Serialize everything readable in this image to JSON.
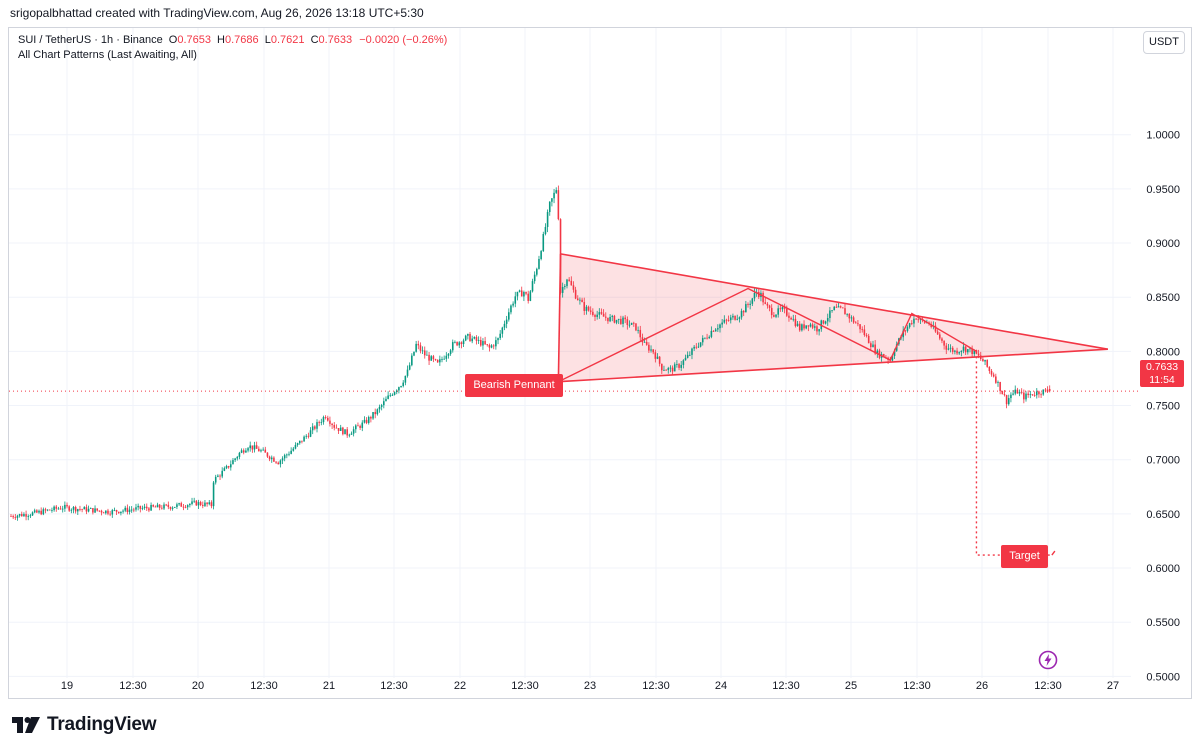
{
  "header": {
    "credit": "srigopalbhattad created with TradingView.com, Aug 26, 2026 13:18 UTC+5:30"
  },
  "legend": {
    "symbol": "SUI / TetherUS · 1h · Binance",
    "o_label": "O",
    "o_value": "0.7653",
    "h_label": "H",
    "h_value": "0.7686",
    "l_label": "L",
    "l_value": "0.7621",
    "c_label": "C",
    "c_value": "0.7633",
    "change": "−0.0020 (−0.26%)",
    "indicator": "All Chart Patterns (Last Awaiting, All)"
  },
  "currency_button": "USDT",
  "price_tag": {
    "price": "0.7633",
    "countdown": "11:54"
  },
  "brand": {
    "name": "TradingView"
  },
  "colors": {
    "up": "#089981",
    "down": "#f23645",
    "grid": "#f0f3fa",
    "pattern_fill": "#f23645"
  },
  "chart_data": {
    "type": "candlestick",
    "timeframe": "1h",
    "title": "SUI / TetherUS · 1h · Binance",
    "x_ticks": [
      "19",
      "12:30",
      "20",
      "12:30",
      "21",
      "12:30",
      "22",
      "12:30",
      "23",
      "12:30",
      "24",
      "12:30",
      "25",
      "12:30",
      "26",
      "12:30",
      "27"
    ],
    "y_ticks": [
      "1.0000",
      "0.9500",
      "0.9000",
      "0.8500",
      "0.8000",
      "0.7500",
      "0.7000",
      "0.6500",
      "0.6000",
      "0.5500",
      "0.5000"
    ],
    "ylim": [
      0.4985,
      1.0505
    ],
    "last_price": 0.7633,
    "grid": true,
    "close_path": [
      [
        0,
        0.648
      ],
      [
        12,
        0.651
      ],
      [
        24,
        0.656
      ],
      [
        35,
        0.654
      ],
      [
        46,
        0.652
      ],
      [
        60,
        0.655
      ],
      [
        75,
        0.657
      ],
      [
        86,
        0.66
      ],
      [
        93,
        0.658
      ],
      [
        94,
        0.681
      ],
      [
        100,
        0.692
      ],
      [
        106,
        0.706
      ],
      [
        110,
        0.713
      ],
      [
        116,
        0.708
      ],
      [
        124,
        0.698
      ],
      [
        132,
        0.712
      ],
      [
        140,
        0.728
      ],
      [
        146,
        0.741
      ],
      [
        150,
        0.731
      ],
      [
        156,
        0.724
      ],
      [
        164,
        0.734
      ],
      [
        170,
        0.745
      ],
      [
        176,
        0.76
      ],
      [
        181,
        0.77
      ],
      [
        184,
        0.781
      ],
      [
        188,
        0.806
      ],
      [
        192,
        0.797
      ],
      [
        198,
        0.788
      ],
      [
        205,
        0.806
      ],
      [
        212,
        0.813
      ],
      [
        218,
        0.808
      ],
      [
        222,
        0.803
      ],
      [
        226,
        0.811
      ],
      [
        230,
        0.832
      ],
      [
        234,
        0.851
      ],
      [
        238,
        0.855
      ],
      [
        240,
        0.848
      ],
      [
        244,
        0.878
      ],
      [
        247,
        0.905
      ],
      [
        250,
        0.935
      ],
      [
        253,
        0.95
      ],
      [
        254,
        0.925
      ],
      [
        255,
        0.855
      ],
      [
        258,
        0.868
      ],
      [
        262,
        0.852
      ],
      [
        266,
        0.84
      ],
      [
        272,
        0.834
      ],
      [
        278,
        0.83
      ],
      [
        284,
        0.828
      ],
      [
        290,
        0.822
      ],
      [
        294,
        0.806
      ],
      [
        298,
        0.8
      ],
      [
        302,
        0.785
      ],
      [
        306,
        0.783
      ],
      [
        310,
        0.787
      ],
      [
        314,
        0.795
      ],
      [
        318,
        0.805
      ],
      [
        322,
        0.812
      ],
      [
        326,
        0.821
      ],
      [
        330,
        0.826
      ],
      [
        334,
        0.83
      ],
      [
        338,
        0.834
      ],
      [
        342,
        0.843
      ],
      [
        346,
        0.855
      ],
      [
        348,
        0.852
      ],
      [
        350,
        0.842
      ],
      [
        354,
        0.835
      ],
      [
        358,
        0.838
      ],
      [
        362,
        0.832
      ],
      [
        366,
        0.821
      ],
      [
        370,
        0.826
      ],
      [
        374,
        0.821
      ],
      [
        378,
        0.83
      ],
      [
        382,
        0.839
      ],
      [
        386,
        0.838
      ],
      [
        390,
        0.83
      ],
      [
        394,
        0.822
      ],
      [
        398,
        0.81
      ],
      [
        402,
        0.798
      ],
      [
        406,
        0.795
      ],
      [
        408,
        0.792
      ],
      [
        410,
        0.803
      ],
      [
        414,
        0.817
      ],
      [
        418,
        0.828
      ],
      [
        420,
        0.832
      ],
      [
        422,
        0.828
      ],
      [
        426,
        0.826
      ],
      [
        430,
        0.815
      ],
      [
        434,
        0.804
      ],
      [
        438,
        0.8
      ],
      [
        442,
        0.803
      ],
      [
        446,
        0.8
      ],
      [
        448,
        0.797
      ],
      [
        450,
        0.793
      ],
      [
        452,
        0.789
      ],
      [
        454,
        0.782
      ],
      [
        456,
        0.778
      ],
      [
        458,
        0.77
      ],
      [
        460,
        0.762
      ],
      [
        462,
        0.754
      ],
      [
        464,
        0.76
      ],
      [
        467,
        0.763
      ],
      [
        470,
        0.758
      ],
      [
        474,
        0.761
      ],
      [
        478,
        0.763
      ],
      [
        482,
        0.7633
      ]
    ],
    "pattern": {
      "name": "Bearish Pennant",
      "upper_line": [
        [
          255,
          0.89
        ],
        [
          509,
          0.802
        ]
      ],
      "lower_line": [
        [
          254,
          0.772
        ],
        [
          509,
          0.802
        ]
      ],
      "zigzag": [
        [
          254,
          0.772
        ],
        [
          342,
          0.858
        ],
        [
          408,
          0.792
        ],
        [
          418,
          0.835
        ],
        [
          448,
          0.8
        ]
      ],
      "target_label": "Target",
      "target_price": 0.612,
      "target_from": [
        448,
        0.762
      ],
      "target_end": [
        483,
        0.612
      ]
    }
  }
}
